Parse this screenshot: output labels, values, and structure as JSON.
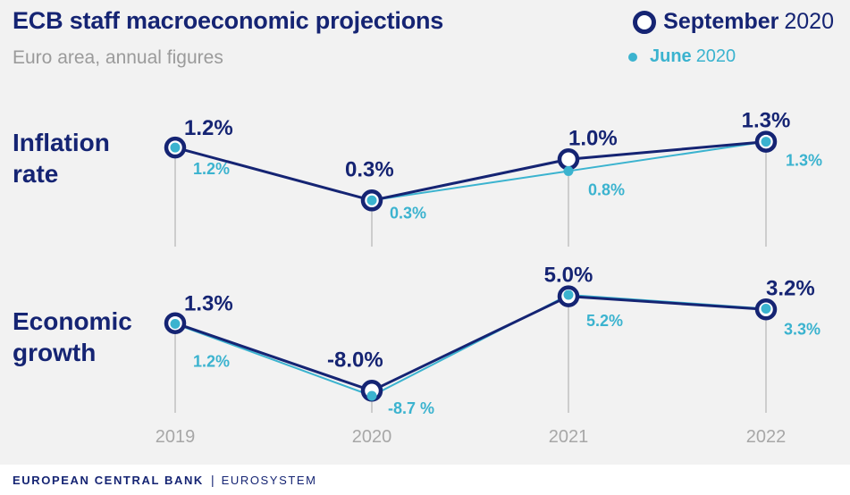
{
  "header": {
    "title": "ECB staff macroeconomic projections",
    "subtitle": "Euro area, annual figures"
  },
  "legend": {
    "september_name": "September",
    "september_year": "2020",
    "june_name": "June",
    "june_year": "2020"
  },
  "panels": [
    {
      "label_lines": [
        "Inflation",
        "rate"
      ]
    },
    {
      "label_lines": [
        "Economic",
        "growth"
      ]
    }
  ],
  "footer": {
    "org": "EUROPEAN CENTRAL BANK",
    "divider": "|",
    "system": "EUROSYSTEM"
  },
  "colors": {
    "september": "#152473",
    "june": "#3bb3cf",
    "axis_line": "#b5b5b5",
    "tick_label": "#a7a7a7"
  },
  "chart_data": [
    {
      "type": "line",
      "panel": "Inflation rate",
      "categories": [
        "2019",
        "2020",
        "2021",
        "2022"
      ],
      "ylim": [
        0,
        1.4
      ],
      "series": [
        {
          "name": "September 2020",
          "values": [
            1.2,
            0.3,
            1.0,
            1.3
          ],
          "labels": [
            "1.2%",
            "0.3%",
            "1.0%",
            "1.3%"
          ]
        },
        {
          "name": "June 2020",
          "values": [
            1.2,
            0.3,
            0.8,
            1.3
          ],
          "labels": [
            "1.2%",
            "0.3%",
            "0.8%",
            "1.3%"
          ]
        }
      ]
    },
    {
      "type": "line",
      "panel": "Economic growth",
      "categories": [
        "2019",
        "2020",
        "2021",
        "2022"
      ],
      "ylim": [
        -8.7,
        5.2
      ],
      "series": [
        {
          "name": "September 2020",
          "values": [
            1.3,
            -8.0,
            5.0,
            3.2
          ],
          "labels": [
            "1.3%",
            "-8.0%",
            "5.0%",
            "3.2%"
          ]
        },
        {
          "name": "June 2020",
          "values": [
            1.2,
            -8.7,
            5.2,
            3.3
          ],
          "labels": [
            "1.2%",
            "-8.7 %",
            "5.2%",
            "3.3%"
          ]
        }
      ]
    }
  ]
}
